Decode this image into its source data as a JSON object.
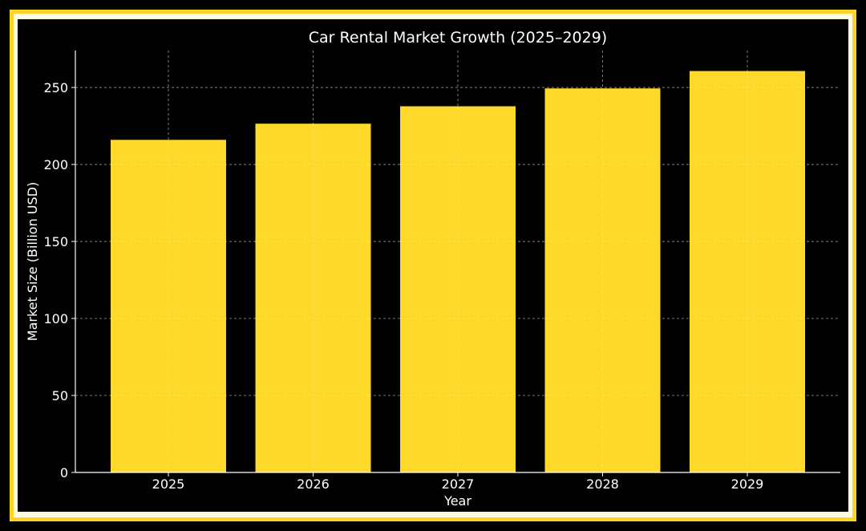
{
  "chart_data": {
    "type": "bar",
    "title": "Car Rental Market Growth (2025–2029)",
    "xlabel": "Year",
    "ylabel": "Market Size (Billion USD)",
    "categories": [
      "2025",
      "2026",
      "2027",
      "2028",
      "2029"
    ],
    "values": [
      216,
      226.5,
      237.8,
      249.4,
      260.7
    ],
    "ylim": [
      0,
      274
    ],
    "yticks": [
      0,
      50,
      100,
      150,
      200,
      250
    ],
    "grid": true,
    "bar_color": "#ffd92a",
    "background_color": "#000000",
    "frame_color": "#ffd42a",
    "grid_color": "#9a9a9a"
  }
}
